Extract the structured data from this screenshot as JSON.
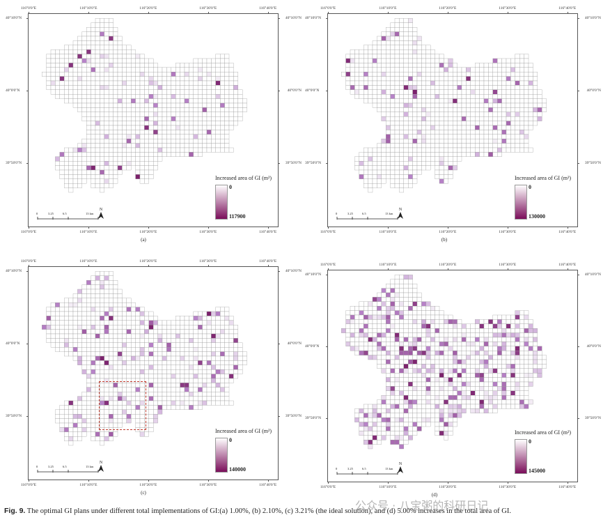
{
  "panels": [
    {
      "id": "a",
      "label": "(a)",
      "top_ticks": [
        "116°0'0\"E",
        "116°10'0\"E",
        "116°20'0\"E",
        "116°30'0\"E",
        "116°40'0\"E"
      ],
      "bottom_ticks": [
        "116°0'0\"E",
        "116°10'0\"E",
        "116°20'0\"E",
        "116°30'0\"E",
        "116°40'0\"E"
      ],
      "left_ticks": [
        "40°10'0\"N",
        "40°0'0\"N",
        "39°50'0\"N"
      ],
      "right_ticks": [
        "40°10'0\"N",
        "40°0'0\"N",
        "39°50'0\"N"
      ],
      "legend_title": "Increased area of GI (m²)",
      "legend_min": "0",
      "legend_max": "117900",
      "scale_labels": [
        "0",
        "3.25",
        "6.5",
        "13 km"
      ],
      "north_label": "N",
      "intensity": 0.06
    },
    {
      "id": "b",
      "label": "(b)",
      "top_ticks": [
        "116°0'0\"E",
        "116°10'0\"E",
        "116°20'0\"E",
        "116°30'0\"E",
        "116°40'0\"E"
      ],
      "bottom_ticks": [
        "116°0'0\"E",
        "116°10'0\"E",
        "116°20'0\"E",
        "116°30'0\"E",
        "116°40'0\"E"
      ],
      "left_ticks": [
        "40°10'0\"N",
        "40°0'0\"N",
        "39°50'0\"N"
      ],
      "right_ticks": [
        "40°10'0\"N",
        "40°0'0\"N",
        "39°50'0\"N"
      ],
      "legend_title": "Increased area of GI (m²)",
      "legend_min": "0",
      "legend_max": "130000",
      "scale_labels": [
        "0",
        "3.25",
        "6.5",
        "13 km"
      ],
      "north_label": "N",
      "intensity": 0.09
    },
    {
      "id": "c",
      "label": "(c)",
      "top_ticks": [
        "116°0'0\"E",
        "116°10'0\"E",
        "116°20'0\"E",
        "116°30'0\"E",
        "116°40'0\"E"
      ],
      "bottom_ticks": [
        "116°0'0\"E",
        "116°10'0\"E",
        "116°20'0\"E",
        "116°30'0\"E",
        "116°40'0\"E"
      ],
      "left_ticks": [
        "40°10'0\"N",
        "40°0'0\"N",
        "39°50'0\"N"
      ],
      "right_ticks": [
        "40°10'0\"N",
        "40°0'0\"N",
        "39°50'0\"N"
      ],
      "legend_title": "Increased area of GI (m²)",
      "legend_min": "0",
      "legend_max": "140000",
      "scale_labels": [
        "0",
        "3.25",
        "6.5",
        "13 km"
      ],
      "north_label": "N",
      "intensity": 0.16
    },
    {
      "id": "d",
      "label": "(d)",
      "top_ticks": [
        "116°0'0\"E",
        "116°10'0\"E",
        "116°20'0\"E",
        "116°30'0\"E",
        "116°40'0\"E"
      ],
      "bottom_ticks": [
        "116°0'0\"E",
        "116°10'0\"E",
        "116°20'0\"E",
        "116°30'0\"E",
        "116°40'0\"E"
      ],
      "left_ticks": [
        "40°10'0\"N",
        "40°0'0\"N",
        "39°50'0\"N"
      ],
      "right_ticks": [
        "40°10'0\"N",
        "40°0'0\"N",
        "39°50'0\"N"
      ],
      "legend_title": "Increased area of GI (m²)",
      "legend_min": "0",
      "legend_max": "145000",
      "scale_labels": [
        "0",
        "3.25",
        "6.5",
        "13 km"
      ],
      "north_label": "N",
      "intensity": 0.3
    }
  ],
  "colors": {
    "grid_line": "#9a9a9a",
    "cell_low": "#f4eef6",
    "cell_mid": "#b884c9",
    "cell_high": "#7a1f6a",
    "legend_top": "#ffffff",
    "legend_bottom": "#7a0e5a"
  },
  "caption": {
    "label": "Fig. 9.",
    "text": "The optimal GI plans under different total implementations of GI:(a) 1.00%, (b) 2.10%, (c) 3.21% (the ideal solution), and (d) 5.00% increases in the total area of GI."
  },
  "watermark": "公众号 · 八宝粥的科研日记"
}
